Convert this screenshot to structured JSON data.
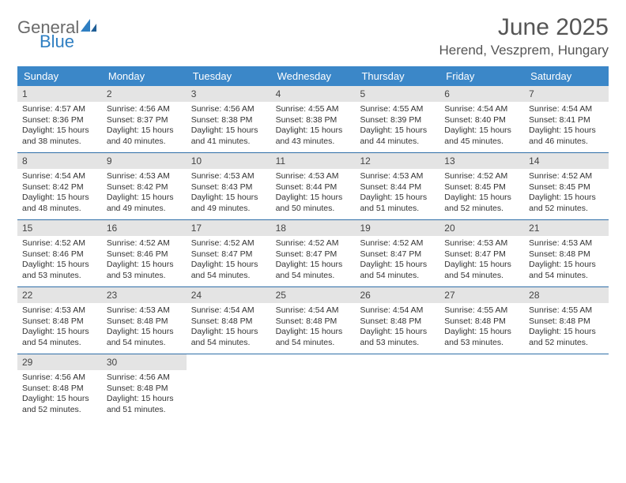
{
  "brand": {
    "part1": "General",
    "part2": "Blue"
  },
  "title": "June 2025",
  "location": "Herend, Veszprem, Hungary",
  "colors": {
    "header_bg": "#3b87c8",
    "header_text": "#ffffff",
    "daynum_bg": "#e4e4e4",
    "rule": "#2f6ea8",
    "brand_gray": "#6a6a6a",
    "brand_blue": "#2f7fc2",
    "text": "#333333",
    "page_bg": "#ffffff"
  },
  "weekdays": [
    "Sunday",
    "Monday",
    "Tuesday",
    "Wednesday",
    "Thursday",
    "Friday",
    "Saturday"
  ],
  "weeks": [
    [
      {
        "day": "1",
        "sunrise": "Sunrise: 4:57 AM",
        "sunset": "Sunset: 8:36 PM",
        "dl1": "Daylight: 15 hours",
        "dl2": "and 38 minutes."
      },
      {
        "day": "2",
        "sunrise": "Sunrise: 4:56 AM",
        "sunset": "Sunset: 8:37 PM",
        "dl1": "Daylight: 15 hours",
        "dl2": "and 40 minutes."
      },
      {
        "day": "3",
        "sunrise": "Sunrise: 4:56 AM",
        "sunset": "Sunset: 8:38 PM",
        "dl1": "Daylight: 15 hours",
        "dl2": "and 41 minutes."
      },
      {
        "day": "4",
        "sunrise": "Sunrise: 4:55 AM",
        "sunset": "Sunset: 8:38 PM",
        "dl1": "Daylight: 15 hours",
        "dl2": "and 43 minutes."
      },
      {
        "day": "5",
        "sunrise": "Sunrise: 4:55 AM",
        "sunset": "Sunset: 8:39 PM",
        "dl1": "Daylight: 15 hours",
        "dl2": "and 44 minutes."
      },
      {
        "day": "6",
        "sunrise": "Sunrise: 4:54 AM",
        "sunset": "Sunset: 8:40 PM",
        "dl1": "Daylight: 15 hours",
        "dl2": "and 45 minutes."
      },
      {
        "day": "7",
        "sunrise": "Sunrise: 4:54 AM",
        "sunset": "Sunset: 8:41 PM",
        "dl1": "Daylight: 15 hours",
        "dl2": "and 46 minutes."
      }
    ],
    [
      {
        "day": "8",
        "sunrise": "Sunrise: 4:54 AM",
        "sunset": "Sunset: 8:42 PM",
        "dl1": "Daylight: 15 hours",
        "dl2": "and 48 minutes."
      },
      {
        "day": "9",
        "sunrise": "Sunrise: 4:53 AM",
        "sunset": "Sunset: 8:42 PM",
        "dl1": "Daylight: 15 hours",
        "dl2": "and 49 minutes."
      },
      {
        "day": "10",
        "sunrise": "Sunrise: 4:53 AM",
        "sunset": "Sunset: 8:43 PM",
        "dl1": "Daylight: 15 hours",
        "dl2": "and 49 minutes."
      },
      {
        "day": "11",
        "sunrise": "Sunrise: 4:53 AM",
        "sunset": "Sunset: 8:44 PM",
        "dl1": "Daylight: 15 hours",
        "dl2": "and 50 minutes."
      },
      {
        "day": "12",
        "sunrise": "Sunrise: 4:53 AM",
        "sunset": "Sunset: 8:44 PM",
        "dl1": "Daylight: 15 hours",
        "dl2": "and 51 minutes."
      },
      {
        "day": "13",
        "sunrise": "Sunrise: 4:52 AM",
        "sunset": "Sunset: 8:45 PM",
        "dl1": "Daylight: 15 hours",
        "dl2": "and 52 minutes."
      },
      {
        "day": "14",
        "sunrise": "Sunrise: 4:52 AM",
        "sunset": "Sunset: 8:45 PM",
        "dl1": "Daylight: 15 hours",
        "dl2": "and 52 minutes."
      }
    ],
    [
      {
        "day": "15",
        "sunrise": "Sunrise: 4:52 AM",
        "sunset": "Sunset: 8:46 PM",
        "dl1": "Daylight: 15 hours",
        "dl2": "and 53 minutes."
      },
      {
        "day": "16",
        "sunrise": "Sunrise: 4:52 AM",
        "sunset": "Sunset: 8:46 PM",
        "dl1": "Daylight: 15 hours",
        "dl2": "and 53 minutes."
      },
      {
        "day": "17",
        "sunrise": "Sunrise: 4:52 AM",
        "sunset": "Sunset: 8:47 PM",
        "dl1": "Daylight: 15 hours",
        "dl2": "and 54 minutes."
      },
      {
        "day": "18",
        "sunrise": "Sunrise: 4:52 AM",
        "sunset": "Sunset: 8:47 PM",
        "dl1": "Daylight: 15 hours",
        "dl2": "and 54 minutes."
      },
      {
        "day": "19",
        "sunrise": "Sunrise: 4:52 AM",
        "sunset": "Sunset: 8:47 PM",
        "dl1": "Daylight: 15 hours",
        "dl2": "and 54 minutes."
      },
      {
        "day": "20",
        "sunrise": "Sunrise: 4:53 AM",
        "sunset": "Sunset: 8:47 PM",
        "dl1": "Daylight: 15 hours",
        "dl2": "and 54 minutes."
      },
      {
        "day": "21",
        "sunrise": "Sunrise: 4:53 AM",
        "sunset": "Sunset: 8:48 PM",
        "dl1": "Daylight: 15 hours",
        "dl2": "and 54 minutes."
      }
    ],
    [
      {
        "day": "22",
        "sunrise": "Sunrise: 4:53 AM",
        "sunset": "Sunset: 8:48 PM",
        "dl1": "Daylight: 15 hours",
        "dl2": "and 54 minutes."
      },
      {
        "day": "23",
        "sunrise": "Sunrise: 4:53 AM",
        "sunset": "Sunset: 8:48 PM",
        "dl1": "Daylight: 15 hours",
        "dl2": "and 54 minutes."
      },
      {
        "day": "24",
        "sunrise": "Sunrise: 4:54 AM",
        "sunset": "Sunset: 8:48 PM",
        "dl1": "Daylight: 15 hours",
        "dl2": "and 54 minutes."
      },
      {
        "day": "25",
        "sunrise": "Sunrise: 4:54 AM",
        "sunset": "Sunset: 8:48 PM",
        "dl1": "Daylight: 15 hours",
        "dl2": "and 54 minutes."
      },
      {
        "day": "26",
        "sunrise": "Sunrise: 4:54 AM",
        "sunset": "Sunset: 8:48 PM",
        "dl1": "Daylight: 15 hours",
        "dl2": "and 53 minutes."
      },
      {
        "day": "27",
        "sunrise": "Sunrise: 4:55 AM",
        "sunset": "Sunset: 8:48 PM",
        "dl1": "Daylight: 15 hours",
        "dl2": "and 53 minutes."
      },
      {
        "day": "28",
        "sunrise": "Sunrise: 4:55 AM",
        "sunset": "Sunset: 8:48 PM",
        "dl1": "Daylight: 15 hours",
        "dl2": "and 52 minutes."
      }
    ],
    [
      {
        "day": "29",
        "sunrise": "Sunrise: 4:56 AM",
        "sunset": "Sunset: 8:48 PM",
        "dl1": "Daylight: 15 hours",
        "dl2": "and 52 minutes."
      },
      {
        "day": "30",
        "sunrise": "Sunrise: 4:56 AM",
        "sunset": "Sunset: 8:48 PM",
        "dl1": "Daylight: 15 hours",
        "dl2": "and 51 minutes."
      },
      null,
      null,
      null,
      null,
      null
    ]
  ]
}
